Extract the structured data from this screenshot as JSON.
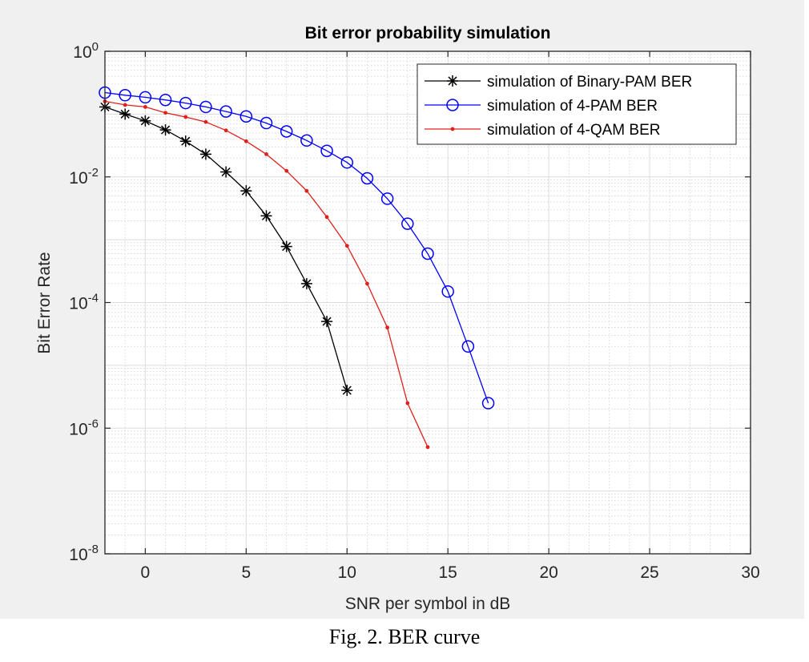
{
  "caption": "Fig. 2. BER curve",
  "chart_data": {
    "type": "line",
    "title": "Bit error probability simulation",
    "xlabel": "SNR per symbol in dB",
    "ylabel": "Bit Error Rate",
    "xlim": [
      -2,
      30
    ],
    "ylim": [
      1e-08,
      1
    ],
    "yscale": "log",
    "xticks": [
      0,
      5,
      10,
      15,
      20,
      25,
      30
    ],
    "yticks": [
      {
        "base": "10",
        "exp": "0"
      },
      {
        "base": "10",
        "exp": "-2"
      },
      {
        "base": "10",
        "exp": "-4"
      },
      {
        "base": "10",
        "exp": "-6"
      },
      {
        "base": "10",
        "exp": "-8"
      }
    ],
    "grid": true,
    "minor_grid": true,
    "legend_position": "top-right",
    "series": [
      {
        "name": "simulation of Binary-PAM BER",
        "color": "#000000",
        "marker": "asterisk",
        "x": [
          -2,
          -1,
          0,
          1,
          2,
          3,
          4,
          5,
          6,
          7,
          8,
          9,
          10
        ],
        "y": [
          0.13,
          0.1,
          0.078,
          0.056,
          0.037,
          0.023,
          0.012,
          0.006,
          0.0024,
          0.00078,
          0.0002,
          5e-05,
          4e-06
        ]
      },
      {
        "name": "simulation of 4-PAM BER",
        "color": "#0000ff",
        "marker": "circle",
        "x": [
          -2,
          -1,
          0,
          1,
          2,
          3,
          4,
          5,
          6,
          7,
          8,
          9,
          10,
          11,
          12,
          13,
          14,
          15,
          16,
          17
        ],
        "y": [
          0.22,
          0.2,
          0.185,
          0.168,
          0.15,
          0.13,
          0.11,
          0.092,
          0.072,
          0.053,
          0.038,
          0.026,
          0.017,
          0.0095,
          0.0045,
          0.0018,
          0.0006,
          0.00015,
          2e-05,
          2.5e-06
        ]
      },
      {
        "name": "simulation of 4-QAM BER",
        "color": "#e0201c",
        "marker": "dot",
        "x": [
          -2,
          -1,
          0,
          1,
          2,
          3,
          4,
          5,
          6,
          7,
          8,
          9,
          10,
          11,
          12,
          13,
          14
        ],
        "y": [
          0.16,
          0.14,
          0.13,
          0.105,
          0.09,
          0.075,
          0.055,
          0.037,
          0.023,
          0.0125,
          0.006,
          0.0023,
          0.0008,
          0.0002,
          4e-05,
          2.5e-06,
          5e-07
        ]
      }
    ]
  }
}
